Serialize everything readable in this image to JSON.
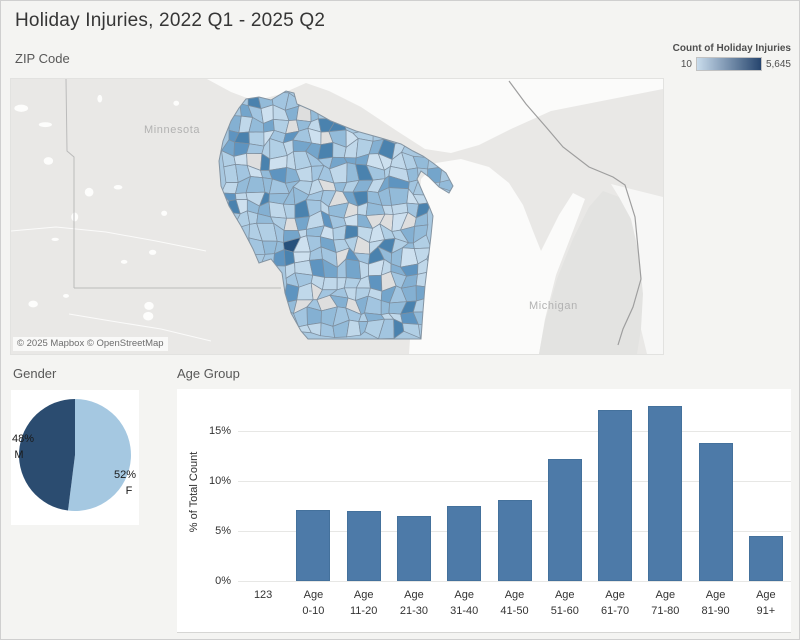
{
  "page_title": "Holiday Injuries, 2022 Q1 - 2025 Q2",
  "map": {
    "section_title": "ZIP Code",
    "legend_title": "Count of Holiday Injuries",
    "legend_min": "10",
    "legend_max": "5,645",
    "legend_gradient": [
      "#c9dcec",
      "#26456e"
    ],
    "label_minnesota": "Minnesota",
    "label_michigan": "Michigan",
    "attribution": "© 2025 Mapbox © OpenStreetMap",
    "zip_palette": [
      "#cde0ef",
      "#c0d8ea",
      "#c0d8ea",
      "#b1cfe5",
      "#b1cfe5",
      "#a2c5e0",
      "#a2c5e0",
      "#93bbd9",
      "#93bbd9",
      "#84b0d2",
      "#74a5cb",
      "#5e94c0",
      "#4a82ae",
      "#dedede"
    ],
    "zip_palette_dark": "#27517c",
    "zip_stroke": "#7d8e9e"
  },
  "chart_data": [
    {
      "type": "choropleth_map",
      "title": "ZIP Code",
      "region": "Wisconsin ZIP codes (Mapbox basemap with Minnesota and Michigan visible)",
      "measure": "Count of Holiday Injuries",
      "color_range": [
        10,
        5645
      ],
      "legend_labels": [
        "10",
        "5,645"
      ],
      "attribution": "© 2025 Mapbox © OpenStreetMap"
    },
    {
      "type": "pie",
      "title": "Gender",
      "categories": [
        "M",
        "F"
      ],
      "values": [
        48,
        52
      ],
      "unit": "%",
      "colors": [
        "#2b4c70",
        "#a5c8e1"
      ],
      "labels": [
        "48%",
        "52%"
      ]
    },
    {
      "type": "bar",
      "title": "Age Group",
      "categories": [
        "123",
        "Age 0-10",
        "Age 11-20",
        "Age 21-30",
        "Age 31-40",
        "Age 41-50",
        "Age 51-60",
        "Age 61-70",
        "Age 71-80",
        "Age 81-90",
        "Age 91+"
      ],
      "tick_lines": [
        [
          "123"
        ],
        [
          "Age",
          "0-10"
        ],
        [
          "Age",
          "11-20"
        ],
        [
          "Age",
          "21-30"
        ],
        [
          "Age",
          "31-40"
        ],
        [
          "Age",
          "41-50"
        ],
        [
          "Age",
          "51-60"
        ],
        [
          "Age",
          "61-70"
        ],
        [
          "Age",
          "71-80"
        ],
        [
          "Age",
          "81-90"
        ],
        [
          "Age",
          "91+"
        ]
      ],
      "values": [
        0,
        7.1,
        7.0,
        6.5,
        7.5,
        8.1,
        12.2,
        17.1,
        17.5,
        13.8,
        4.5
      ],
      "xlabel": "",
      "ylabel": "% of Total Count",
      "ytick_values": [
        0,
        5,
        10,
        15
      ],
      "ytick_labels": [
        "0%",
        "5%",
        "10%",
        "15%"
      ],
      "ylim": [
        0,
        19
      ],
      "grid": true,
      "bar_color": "#4d7aa8"
    }
  ]
}
